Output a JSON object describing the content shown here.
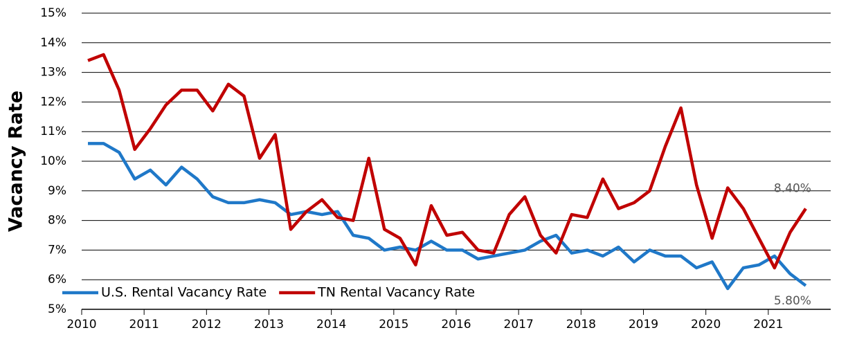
{
  "chart_data": {
    "type": "line",
    "y_label": "Vacancy Rate",
    "x": [
      2010.1,
      2010.35,
      2010.6,
      2010.85,
      2011.1,
      2011.35,
      2011.6,
      2011.85,
      2012.1,
      2012.35,
      2012.6,
      2012.85,
      2013.1,
      2013.35,
      2013.6,
      2013.85,
      2014.1,
      2014.35,
      2014.6,
      2014.85,
      2015.1,
      2015.35,
      2015.6,
      2015.85,
      2016.1,
      2016.35,
      2016.6,
      2016.85,
      2017.1,
      2017.35,
      2017.6,
      2017.85,
      2018.1,
      2018.35,
      2018.6,
      2018.85,
      2019.1,
      2019.35,
      2019.6,
      2019.85,
      2020.1,
      2020.35,
      2020.6,
      2020.85,
      2021.1,
      2021.35,
      2021.6
    ],
    "series": [
      {
        "name": "U.S. Rental Vacancy Rate",
        "color": "#1f78c8",
        "values": [
          10.6,
          10.6,
          10.3,
          9.4,
          9.7,
          9.2,
          9.8,
          9.4,
          8.8,
          8.6,
          8.6,
          8.7,
          8.6,
          8.2,
          8.3,
          8.2,
          8.3,
          7.5,
          7.4,
          7.0,
          7.1,
          7.0,
          7.3,
          7.0,
          7.0,
          6.7,
          6.8,
          6.9,
          7.0,
          7.3,
          7.5,
          6.9,
          7.0,
          6.8,
          7.1,
          6.6,
          7.0,
          6.8,
          6.8,
          6.4,
          6.6,
          5.7,
          6.4,
          6.5,
          6.8,
          6.2,
          5.8
        ],
        "value_labels": [
          null,
          null,
          null,
          null,
          null,
          null,
          null,
          null,
          null,
          null,
          null,
          null,
          null,
          null,
          null,
          null,
          null,
          null,
          null,
          null,
          null,
          null,
          null,
          null,
          null,
          null,
          null,
          null,
          null,
          null,
          null,
          null,
          null,
          null,
          null,
          null,
          null,
          null,
          null,
          null,
          null,
          null,
          null,
          null,
          null,
          null,
          "5.80%"
        ]
      },
      {
        "name": "TN Rental Vacancy Rate",
        "color": "#c00000",
        "values": [
          13.4,
          13.6,
          12.4,
          10.4,
          11.1,
          11.9,
          12.4,
          12.4,
          11.7,
          12.6,
          12.2,
          10.1,
          10.9,
          7.7,
          8.3,
          8.7,
          8.1,
          8.0,
          10.1,
          7.7,
          7.4,
          6.5,
          8.5,
          7.5,
          7.6,
          7.0,
          6.9,
          8.2,
          8.8,
          7.5,
          6.9,
          8.2,
          8.1,
          9.4,
          8.4,
          8.6,
          9.0,
          10.5,
          11.8,
          9.2,
          7.4,
          9.1,
          8.4,
          7.4,
          6.4,
          7.6,
          8.4
        ],
        "value_labels": [
          null,
          null,
          null,
          null,
          null,
          null,
          null,
          null,
          null,
          null,
          null,
          null,
          null,
          null,
          null,
          null,
          null,
          null,
          null,
          null,
          null,
          null,
          null,
          null,
          null,
          null,
          null,
          null,
          null,
          null,
          null,
          null,
          null,
          null,
          null,
          null,
          null,
          null,
          null,
          null,
          null,
          null,
          null,
          null,
          null,
          null,
          "8.40%"
        ]
      }
    ],
    "xlim": [
      2010,
      2022
    ],
    "xticks": [
      2010,
      2011,
      2012,
      2013,
      2014,
      2015,
      2016,
      2017,
      2018,
      2019,
      2020,
      2021
    ],
    "ylim": [
      5,
      15
    ],
    "yticks": [
      {
        "value": 5,
        "label": "5%"
      },
      {
        "value": 6,
        "label": "6%"
      },
      {
        "value": 7,
        "label": "7%"
      },
      {
        "value": 8,
        "label": "8%"
      },
      {
        "value": 9,
        "label": "9%"
      },
      {
        "value": 10,
        "label": "10%"
      },
      {
        "value": 11,
        "label": "11%"
      },
      {
        "value": 12,
        "label": "12%"
      },
      {
        "value": 13,
        "label": "13%"
      },
      {
        "value": 14,
        "label": "14%"
      },
      {
        "value": 15,
        "label": "15%"
      }
    ],
    "grid": true,
    "legend": "bottom-left"
  }
}
